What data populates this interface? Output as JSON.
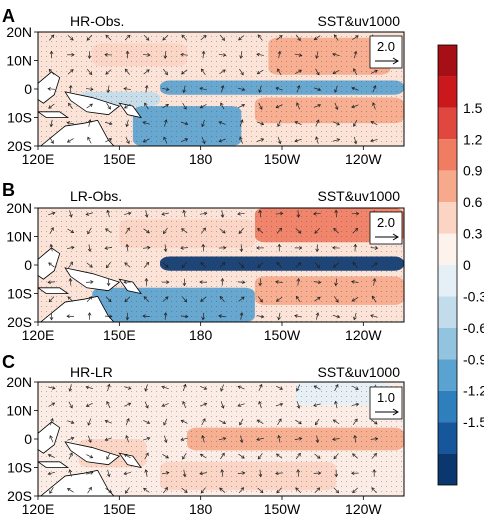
{
  "chart_data": [
    {
      "type": "heatmap",
      "panel_letter": "A",
      "title": "HR-Obs.",
      "subtitle": "SST&uv1000",
      "vector_scale": "2.0",
      "x_ticks": [
        "120E",
        "150E",
        "180",
        "150W",
        "120W"
      ],
      "x_values": [
        120,
        150,
        180,
        210,
        240
      ],
      "y_ticks": [
        "20N",
        "10N",
        "0",
        "10S",
        "20S"
      ],
      "y_values": [
        20,
        10,
        0,
        -10,
        -20
      ],
      "xlim": [
        120,
        255
      ],
      "ylim": [
        -20,
        20
      ],
      "field_regions": [
        {
          "lon": [
            165,
            255
          ],
          "lat": [
            -2,
            3
          ],
          "value": -1.2
        },
        {
          "lon": [
            155,
            195
          ],
          "lat": [
            -20,
            -6
          ],
          "value": -1.2
        },
        {
          "lon": [
            135,
            165
          ],
          "lat": [
            -6,
            -1
          ],
          "value": -0.6
        },
        {
          "lon": [
            205,
            250
          ],
          "lat": [
            5,
            18
          ],
          "value": 0.6
        },
        {
          "lon": [
            140,
            175
          ],
          "lat": [
            8,
            16
          ],
          "value": 0.3
        },
        {
          "lon": [
            200,
            255
          ],
          "lat": [
            -12,
            -3
          ],
          "value": 0.6
        }
      ]
    },
    {
      "type": "heatmap",
      "panel_letter": "B",
      "title": "LR-Obs.",
      "subtitle": "SST&uv1000",
      "vector_scale": "2.0",
      "x_ticks": [
        "120E",
        "150E",
        "180",
        "150W",
        "120W"
      ],
      "x_values": [
        120,
        150,
        180,
        210,
        240
      ],
      "y_ticks": [
        "20N",
        "10N",
        "0",
        "10S",
        "20S"
      ],
      "y_values": [
        20,
        10,
        0,
        -10,
        -20
      ],
      "xlim": [
        120,
        255
      ],
      "ylim": [
        -20,
        20
      ],
      "field_regions": [
        {
          "lon": [
            165,
            255
          ],
          "lat": [
            -2,
            3
          ],
          "value": -1.5
        },
        {
          "lon": [
            140,
            200
          ],
          "lat": [
            -20,
            -8
          ],
          "value": -1.2
        },
        {
          "lon": [
            200,
            255
          ],
          "lat": [
            8,
            20
          ],
          "value": 0.9
        },
        {
          "lon": [
            150,
            200
          ],
          "lat": [
            6,
            16
          ],
          "value": 0.3
        },
        {
          "lon": [
            200,
            255
          ],
          "lat": [
            -14,
            -4
          ],
          "value": 0.6
        }
      ]
    },
    {
      "type": "heatmap",
      "panel_letter": "C",
      "title": "HR-LR",
      "subtitle": "SST&uv1000",
      "vector_scale": "1.0",
      "x_ticks": [
        "120E",
        "150E",
        "180",
        "150W",
        "120W"
      ],
      "x_values": [
        120,
        150,
        180,
        210,
        240
      ],
      "y_ticks": [
        "20N",
        "10N",
        "0",
        "10S",
        "20S"
      ],
      "y_values": [
        20,
        10,
        0,
        -10,
        -20
      ],
      "xlim": [
        120,
        255
      ],
      "ylim": [
        -20,
        20
      ],
      "field_regions": [
        {
          "lon": [
            175,
            255
          ],
          "lat": [
            -4,
            4
          ],
          "value": 0.6
        },
        {
          "lon": [
            215,
            250
          ],
          "lat": [
            12,
            20
          ],
          "value": -0.3
        },
        {
          "lon": [
            135,
            160
          ],
          "lat": [
            -10,
            0
          ],
          "value": 0.3
        },
        {
          "lon": [
            165,
            230
          ],
          "lat": [
            -18,
            -8
          ],
          "value": 0.3
        }
      ]
    }
  ],
  "colorbar": {
    "tick_labels": [
      "1.5",
      "1.2",
      "0.9",
      "0.6",
      "0.3",
      "0",
      "-0.3",
      "-0.6",
      "-0.9",
      "-1.2",
      "-1.5"
    ],
    "colors": [
      "#a50f15",
      "#cb181d",
      "#e0483f",
      "#f07d62",
      "#f6a98b",
      "#fbd4c3",
      "#fdf2ec",
      "#e5f0f6",
      "#c2dcec",
      "#93c4df",
      "#5aa2cf",
      "#2f7fbc",
      "#16579c",
      "#0b376f"
    ]
  }
}
